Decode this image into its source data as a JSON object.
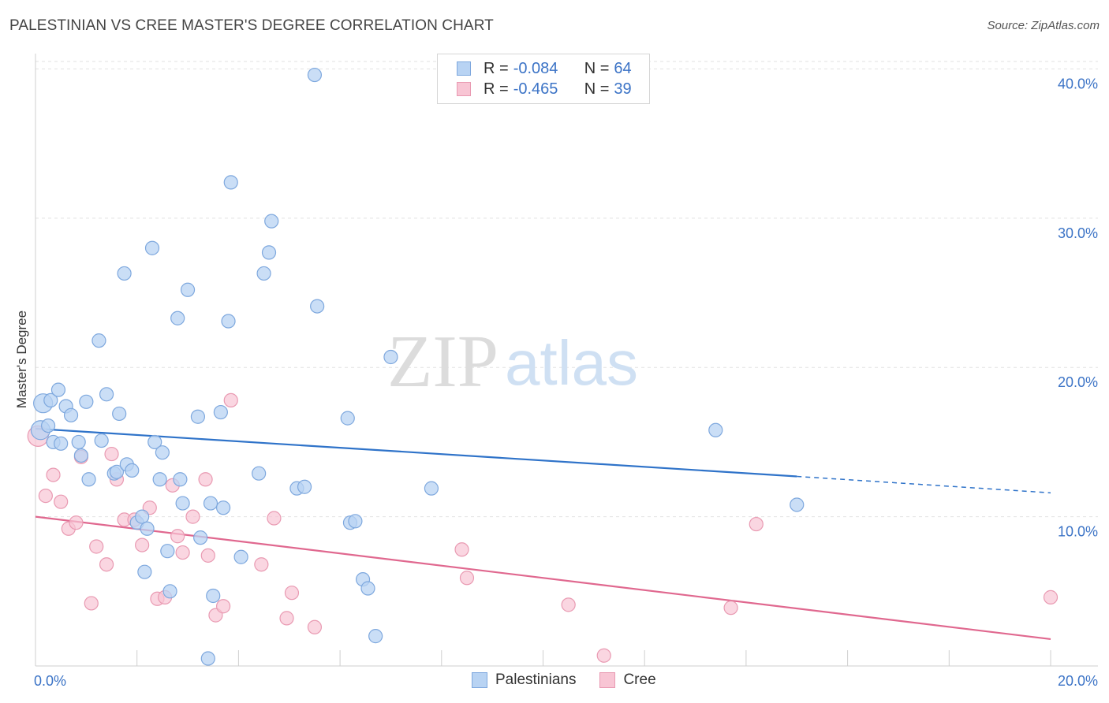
{
  "header": {
    "title": "PALESTINIAN VS CREE MASTER'S DEGREE CORRELATION CHART",
    "source": "Source: ZipAtlas.com"
  },
  "legend": {
    "rows": [
      {
        "r_label": "R = ",
        "r_value": "-0.084",
        "n_label": "N = ",
        "n_value": "64"
      },
      {
        "r_label": "R = ",
        "r_value": "-0.465",
        "n_label": "N = ",
        "n_value": "39"
      }
    ]
  },
  "watermark": {
    "zip": "ZIP",
    "atlas": "atlas"
  },
  "colors": {
    "palestinians_fill": "#b8d3f3",
    "palestinians_stroke": "#7ea8de",
    "palestinians_line": "#2f73c9",
    "cree_fill": "#f8c5d4",
    "cree_stroke": "#e99ab2",
    "cree_line": "#e0688f",
    "tick_label": "#3b73c6",
    "grid": "#e2e2e2"
  },
  "chart_data": {
    "type": "scatter",
    "title": "PALESTINIAN VS CREE MASTER'S DEGREE CORRELATION CHART",
    "xlabel": "",
    "ylabel": "Master's Degree",
    "xlim": [
      0,
      20
    ],
    "ylim": [
      0,
      40.5
    ],
    "x_tick_labels": [
      "0.0%",
      "20.0%"
    ],
    "y_ticks": [
      10,
      20,
      30,
      40
    ],
    "y_tick_labels": [
      "10.0%",
      "20.0%",
      "30.0%",
      "40.0%"
    ],
    "grid": true,
    "legend_position": "top-center",
    "series": [
      {
        "name": "Palestinians",
        "r": -0.084,
        "n": 64,
        "trend": {
          "x0": 0,
          "y0": 15.9,
          "x1": 15.0,
          "y1": 12.7,
          "dash_to_x": 20.0,
          "dash_to_y": 11.6
        },
        "points": [
          [
            0.1,
            15.8
          ],
          [
            0.15,
            17.6
          ],
          [
            0.25,
            16.1
          ],
          [
            0.3,
            17.8
          ],
          [
            0.35,
            15.0
          ],
          [
            0.45,
            18.5
          ],
          [
            0.5,
            14.9
          ],
          [
            0.6,
            17.4
          ],
          [
            0.7,
            16.8
          ],
          [
            0.85,
            15.0
          ],
          [
            0.9,
            14.1
          ],
          [
            1.0,
            17.7
          ],
          [
            1.05,
            12.5
          ],
          [
            1.25,
            21.8
          ],
          [
            1.3,
            15.1
          ],
          [
            1.4,
            18.2
          ],
          [
            1.55,
            12.9
          ],
          [
            1.6,
            13.0
          ],
          [
            1.65,
            16.9
          ],
          [
            1.75,
            26.3
          ],
          [
            1.8,
            13.5
          ],
          [
            1.9,
            13.1
          ],
          [
            2.0,
            9.6
          ],
          [
            2.1,
            10.0
          ],
          [
            2.15,
            6.3
          ],
          [
            2.2,
            9.2
          ],
          [
            2.3,
            28.0
          ],
          [
            2.35,
            15.0
          ],
          [
            2.45,
            12.5
          ],
          [
            2.5,
            14.3
          ],
          [
            2.6,
            7.7
          ],
          [
            2.65,
            5.0
          ],
          [
            2.8,
            23.3
          ],
          [
            2.85,
            12.5
          ],
          [
            2.9,
            10.9
          ],
          [
            3.0,
            25.2
          ],
          [
            3.2,
            16.7
          ],
          [
            3.25,
            8.6
          ],
          [
            3.4,
            0.5
          ],
          [
            3.45,
            10.9
          ],
          [
            3.5,
            4.7
          ],
          [
            3.65,
            17.0
          ],
          [
            3.7,
            10.6
          ],
          [
            3.8,
            23.1
          ],
          [
            3.85,
            32.4
          ],
          [
            4.05,
            7.3
          ],
          [
            4.4,
            12.9
          ],
          [
            4.5,
            26.3
          ],
          [
            4.6,
            27.7
          ],
          [
            4.65,
            29.8
          ],
          [
            5.15,
            11.9
          ],
          [
            5.3,
            12.0
          ],
          [
            5.5,
            39.6
          ],
          [
            5.55,
            24.1
          ],
          [
            6.15,
            16.6
          ],
          [
            6.2,
            9.6
          ],
          [
            6.3,
            9.7
          ],
          [
            6.45,
            5.8
          ],
          [
            6.55,
            5.2
          ],
          [
            6.7,
            2.0
          ],
          [
            7.0,
            20.7
          ],
          [
            7.8,
            11.9
          ],
          [
            13.4,
            15.8
          ],
          [
            15.0,
            10.8
          ]
        ]
      },
      {
        "name": "Cree",
        "r": -0.465,
        "n": 39,
        "trend": {
          "x0": 0,
          "y0": 10.0,
          "x1": 20.0,
          "y1": 1.8
        },
        "points": [
          [
            0.05,
            15.4
          ],
          [
            0.2,
            11.4
          ],
          [
            0.35,
            12.8
          ],
          [
            0.5,
            11.0
          ],
          [
            0.65,
            9.2
          ],
          [
            0.8,
            9.6
          ],
          [
            0.9,
            14.0
          ],
          [
            1.1,
            4.2
          ],
          [
            1.2,
            8.0
          ],
          [
            1.4,
            6.8
          ],
          [
            1.5,
            14.2
          ],
          [
            1.6,
            12.5
          ],
          [
            1.75,
            9.8
          ],
          [
            1.95,
            9.8
          ],
          [
            2.1,
            8.1
          ],
          [
            2.25,
            10.6
          ],
          [
            2.4,
            4.5
          ],
          [
            2.55,
            4.6
          ],
          [
            2.7,
            12.1
          ],
          [
            2.8,
            8.7
          ],
          [
            2.9,
            7.6
          ],
          [
            3.1,
            10.0
          ],
          [
            3.35,
            12.5
          ],
          [
            3.4,
            7.4
          ],
          [
            3.55,
            3.4
          ],
          [
            3.7,
            4.0
          ],
          [
            3.85,
            17.8
          ],
          [
            4.45,
            6.8
          ],
          [
            4.7,
            9.9
          ],
          [
            4.95,
            3.2
          ],
          [
            5.05,
            4.9
          ],
          [
            5.5,
            2.6
          ],
          [
            8.4,
            7.8
          ],
          [
            8.5,
            5.9
          ],
          [
            10.5,
            4.1
          ],
          [
            11.2,
            0.7
          ],
          [
            13.7,
            3.9
          ],
          [
            14.2,
            9.5
          ],
          [
            20.0,
            4.6
          ]
        ]
      }
    ]
  }
}
